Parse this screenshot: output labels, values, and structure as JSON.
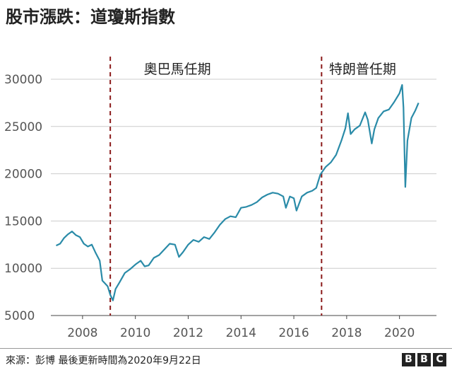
{
  "page": {
    "title": "股市漲跌：道瓊斯指數",
    "source": "來源：彭博 最後更新時間為2020年9月22日",
    "logo_text": "BBC",
    "line_color": "#2a8ba8",
    "marker_color": "#8b1a1a"
  },
  "chart_data": {
    "type": "line",
    "title": "股市漲跌：道瓊斯指數",
    "xlabel": "",
    "ylabel": "",
    "xlim": [
      2006.8,
      2021.4
    ],
    "ylim": [
      5000,
      30000
    ],
    "x_ticks": [
      2008,
      2010,
      2012,
      2014,
      2016,
      2018,
      2020
    ],
    "x_tick_labels": [
      "2008",
      "2010",
      "2012",
      "2014",
      "2016",
      "2018",
      "2020"
    ],
    "y_ticks": [
      5000,
      10000,
      15000,
      20000,
      25000,
      30000
    ],
    "y_tick_labels": [
      "5000",
      "10000",
      "15000",
      "20000",
      "25000",
      "30000"
    ],
    "grid": "horizontal",
    "annotations": [
      {
        "x": 2009.05,
        "label": "奧巴馬任期"
      },
      {
        "x": 2017.05,
        "label": "特朗普任期"
      }
    ],
    "series": [
      {
        "x": [
          2007.0,
          2007.15,
          2007.3,
          2007.45,
          2007.6,
          2007.75,
          2007.9,
          2008.05,
          2008.2,
          2008.35,
          2008.5,
          2008.65,
          2008.75,
          2008.85,
          2008.95,
          2009.05,
          2009.15,
          2009.25,
          2009.4,
          2009.6,
          2009.8,
          2010.0,
          2010.2,
          2010.35,
          2010.5,
          2010.7,
          2010.9,
          2011.1,
          2011.3,
          2011.5,
          2011.65,
          2011.8,
          2012.0,
          2012.2,
          2012.4,
          2012.6,
          2012.8,
          2013.0,
          2013.2,
          2013.4,
          2013.6,
          2013.8,
          2014.0,
          2014.2,
          2014.4,
          2014.6,
          2014.8,
          2015.0,
          2015.2,
          2015.4,
          2015.6,
          2015.7,
          2015.85,
          2016.0,
          2016.1,
          2016.3,
          2016.5,
          2016.7,
          2016.85,
          2017.0,
          2017.2,
          2017.4,
          2017.6,
          2017.8,
          2017.95,
          2018.05,
          2018.15,
          2018.3,
          2018.5,
          2018.7,
          2018.8,
          2018.95,
          2019.05,
          2019.2,
          2019.4,
          2019.6,
          2019.8,
          2020.0,
          2020.1,
          2020.15,
          2020.22,
          2020.3,
          2020.45,
          2020.6,
          2020.72
        ],
        "values": [
          12400,
          12600,
          13200,
          13600,
          13900,
          13500,
          13300,
          12600,
          12300,
          12500,
          11600,
          10800,
          8700,
          8400,
          8100,
          7200,
          6600,
          7800,
          8500,
          9500,
          9900,
          10400,
          10800,
          10200,
          10300,
          11100,
          11400,
          12000,
          12600,
          12500,
          11200,
          11700,
          12500,
          13000,
          12800,
          13300,
          13100,
          13800,
          14600,
          15200,
          15500,
          15400,
          16400,
          16500,
          16700,
          17000,
          17500,
          17800,
          18000,
          17900,
          17600,
          16400,
          17600,
          17400,
          16100,
          17600,
          18000,
          18200,
          18500,
          19900,
          20700,
          21200,
          22000,
          23500,
          24800,
          26400,
          24200,
          24700,
          25100,
          26500,
          25700,
          23200,
          24700,
          25900,
          26600,
          26800,
          27600,
          28500,
          29400,
          27000,
          18600,
          23500,
          25900,
          26700,
          27500
        ]
      }
    ]
  }
}
